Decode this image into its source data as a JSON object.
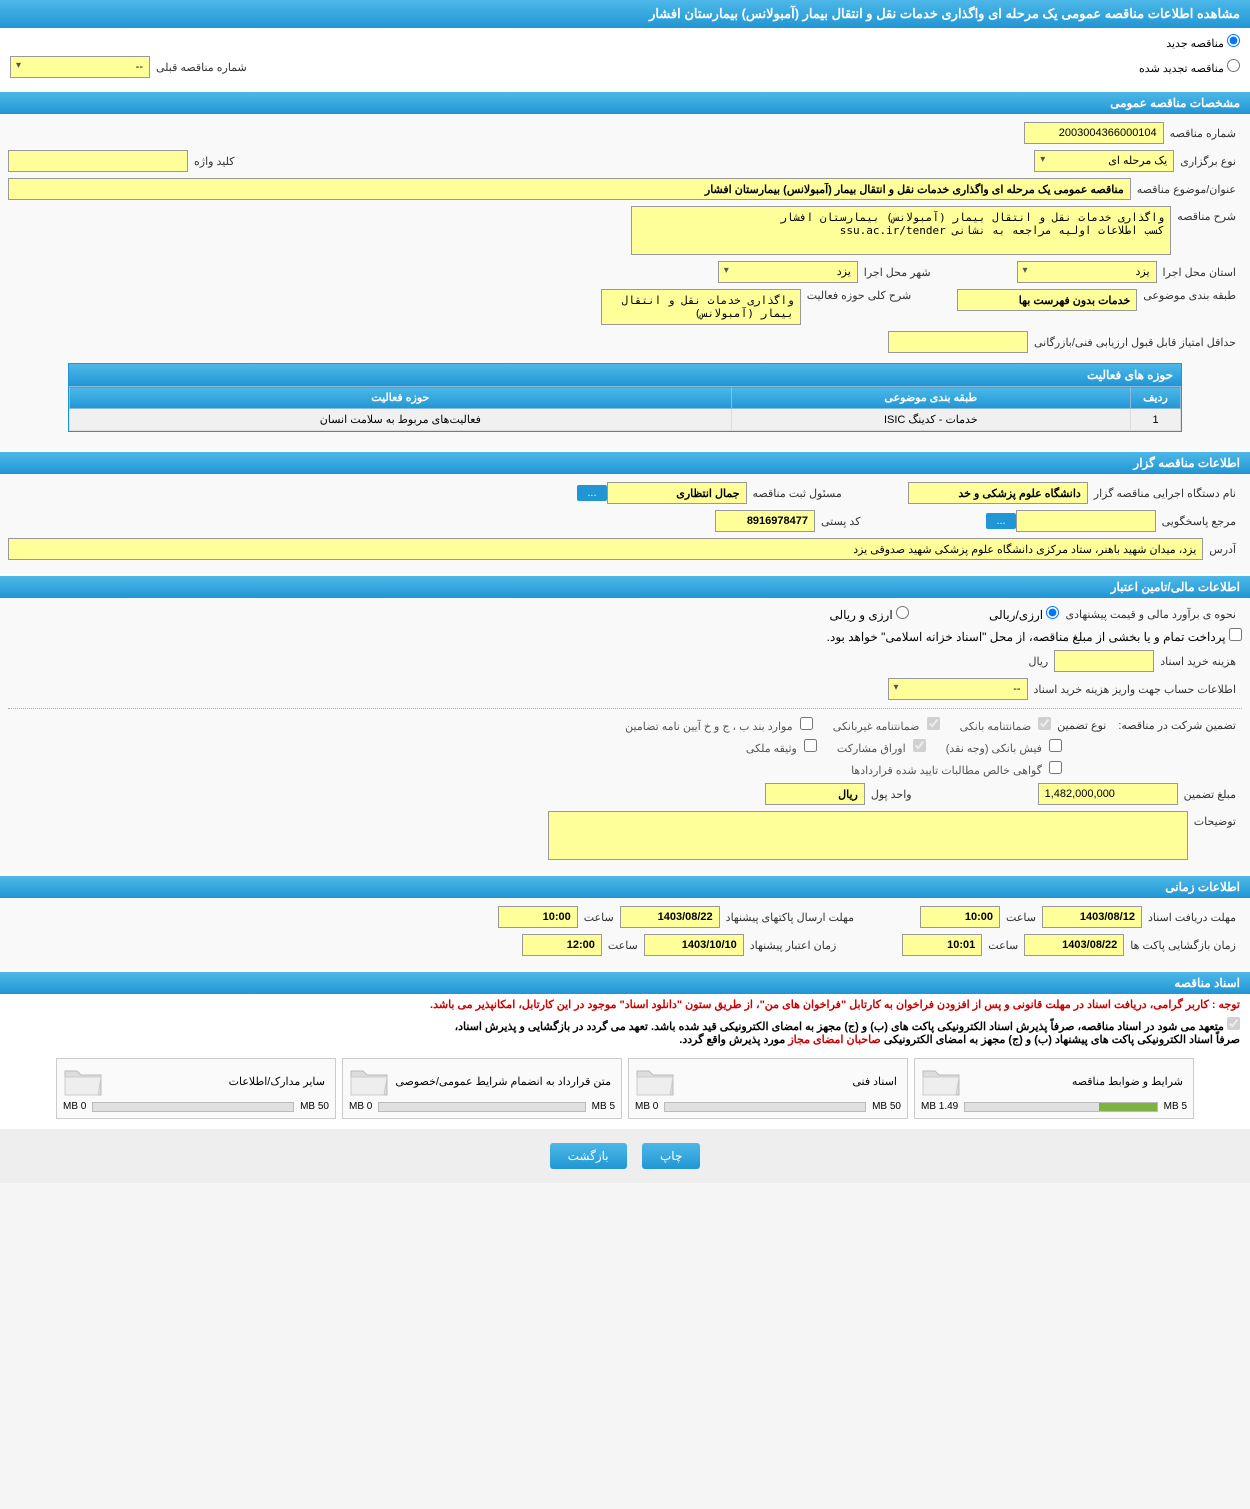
{
  "header": {
    "title": "مشاهده اطلاعات مناقصه عمومی یک مرحله ای واگذاری خدمات نقل و انتقال بیمار (آمبولانس) بیمارستان افشار"
  },
  "radio": {
    "new": "مناقصه جدید",
    "renewed": "مناقصه تجدید شده",
    "prev_label": "شماره مناقصه قبلی",
    "prev_value": "--"
  },
  "sections": {
    "general": "مشخصات مناقصه عمومی",
    "organizer": "اطلاعات مناقصه گزار",
    "financial": "اطلاعات مالی/تامین اعتبار",
    "timing": "اطلاعات زمانی",
    "documents": "اسناد مناقصه"
  },
  "general": {
    "number_label": "شماره مناقصه",
    "number": "2003004366000104",
    "type_label": "نوع برگزاری",
    "type": "یک مرحله ای",
    "keyword_label": "کلید واژه",
    "keyword": "",
    "title_label": "عنوان/موضوع مناقصه",
    "title": "مناقصه عمومی یک مرحله ای واگذاری خدمات نقل و انتقال بیمار (آمبولانس) بیمارستان افشار",
    "desc_label": "شرح مناقصه",
    "desc": "واگذاری خدمات نقل و انتقال بیمار (آمبولانس) بیمارستان افشار\nکسب اطلاعات اولیه مراجعه به نشانی ssu.ac.ir/tender",
    "province_label": "استان محل اجرا",
    "province": "یزد",
    "city_label": "شهر محل اجرا",
    "city": "یزد",
    "category_label": "طبقه بندی موضوعی",
    "category": "خدمات بدون فهرست بها",
    "activity_desc_label": "شرح کلی حوزه فعالیت",
    "activity_desc": "واگذاری خدمات نقل و انتقال بیمار (آمبولانس)",
    "min_score_label": "حداقل امتیاز قابل قبول ارزیابی فنی/بازرگانی",
    "min_score": ""
  },
  "activity_table": {
    "title": "حوزه های فعالیت",
    "col_row": "ردیف",
    "col_category": "طبقه بندی موضوعی",
    "col_field": "حوزه فعالیت",
    "row_num": "1",
    "row_category": "خدمات - کدینگ ISIC",
    "row_field": "فعالیت‌های مربوط به سلامت انسان"
  },
  "organizer": {
    "name_label": "نام دستگاه اجرایی مناقصه گزار",
    "name": "دانشگاه علوم پزشکی و خد",
    "responsible_label": "مسئول ثبت مناقصه",
    "responsible": "جمال انتظاری",
    "dots": "...",
    "ref_label": "مرجع پاسخگویی",
    "ref": "",
    "ref_btn": "...",
    "postal_label": "کد پستی",
    "postal": "8916978477",
    "address_label": "آدرس",
    "address": "یزد، میدان شهید باهنر، ستاد مرکزی دانشگاه علوم پزشکی شهید صدوقی یزد"
  },
  "financial": {
    "method_label": "نحوه ی برآورد مالی و قیمت پیشنهادی",
    "curr_rial": "ارزی/ریالی",
    "curr_foreign": "ارزی و ریالی",
    "treasury": "پرداخت تمام و یا بخشی از مبلغ مناقصه، از محل \"اسناد خزانه اسلامی\" خواهد بود.",
    "doc_cost_label": "هزینه خرید اسناد",
    "doc_cost_unit": "ریال",
    "doc_cost": "",
    "account_label": "اطلاعات حساب جهت واریز هزینه خرید اسناد",
    "account": "--",
    "guarantee_label": "تضمین شرکت در مناقصه:",
    "guarantee_type_label": "نوع تضمین",
    "g_bank": "ضمانتنامه بانکی",
    "g_nonbank": "ضمانتنامه غیربانکی",
    "g_banp": "موارد بند ب ، ج و خ آیین نامه تضامین",
    "g_cash": "فیش بانکی (وجه نقد)",
    "g_bonds": "اوراق مشارکت",
    "g_property": "وثیقه ملکی",
    "g_cert": "گواهی خالص مطالبات تایید شده قراردادها",
    "amount_label": "مبلغ تضمین",
    "amount": "1,482,000,000",
    "unit_label": "واحد پول",
    "unit": "ریال",
    "notes_label": "توضیحات",
    "notes": ""
  },
  "timing": {
    "doc_deadline_label": "مهلت دریافت اسناد",
    "doc_deadline_date": "1403/08/12",
    "doc_deadline_time_label": "ساعت",
    "doc_deadline_time": "10:00",
    "packet_deadline_label": "مهلت ارسال پاکتهای پیشنهاد",
    "packet_deadline_date": "1403/08/22",
    "packet_deadline_time": "10:00",
    "open_label": "زمان بازگشایی پاکت ها",
    "open_date": "1403/08/22",
    "open_time_label": "ساعت",
    "open_time": "10:01",
    "validity_label": "زمان اعتبار پیشنهاد",
    "validity_date": "1403/10/10",
    "validity_time": "12:00"
  },
  "documents": {
    "notice1": "توجه : کاربر گرامی، دریافت اسناد در مهلت قانونی و پس از افزودن فراخوان به کارتابل \"فراخوان های من\"، از طریق ستون \"دانلود اسناد\" موجود در این کارتابل، امکانپذیر می باشد.",
    "notice2a": "متعهد می شود در اسناد مناقصه، صرفاً پذیرش اسناد الکترونیکی پاکت های (ب) و (ج) مجهز به امضای الکترونیکی قید شده باشد. تعهد می گردد در بازگشایی و پذیرش اسناد،",
    "notice2b": "صرفاً اسناد الکترونیکی پاکت های پیشنهاد (ب) و (ج) مجهز به امضای الکترونیکی ",
    "notice2c": "صاحبان امضای مجاز",
    "notice2d": " مورد پذیرش واقع گردد.",
    "files": [
      {
        "title": "شرایط و ضوابط مناقصه",
        "used": "1.49 MB",
        "total": "5 MB",
        "percent": 30
      },
      {
        "title": "اسناد فنی",
        "used": "0 MB",
        "total": "50 MB",
        "percent": 0
      },
      {
        "title": "متن قرارداد به انضمام شرایط عمومی/خصوصی",
        "used": "0 MB",
        "total": "5 MB",
        "percent": 0
      },
      {
        "title": "سایر مدارک/اطلاعات",
        "used": "0 MB",
        "total": "50 MB",
        "percent": 0
      }
    ]
  },
  "buttons": {
    "print": "چاپ",
    "back": "بازگشت"
  },
  "colors": {
    "header_bg": "#2196d4",
    "yellow": "#ffff99",
    "red": "#c00",
    "green": "#7cb342"
  }
}
